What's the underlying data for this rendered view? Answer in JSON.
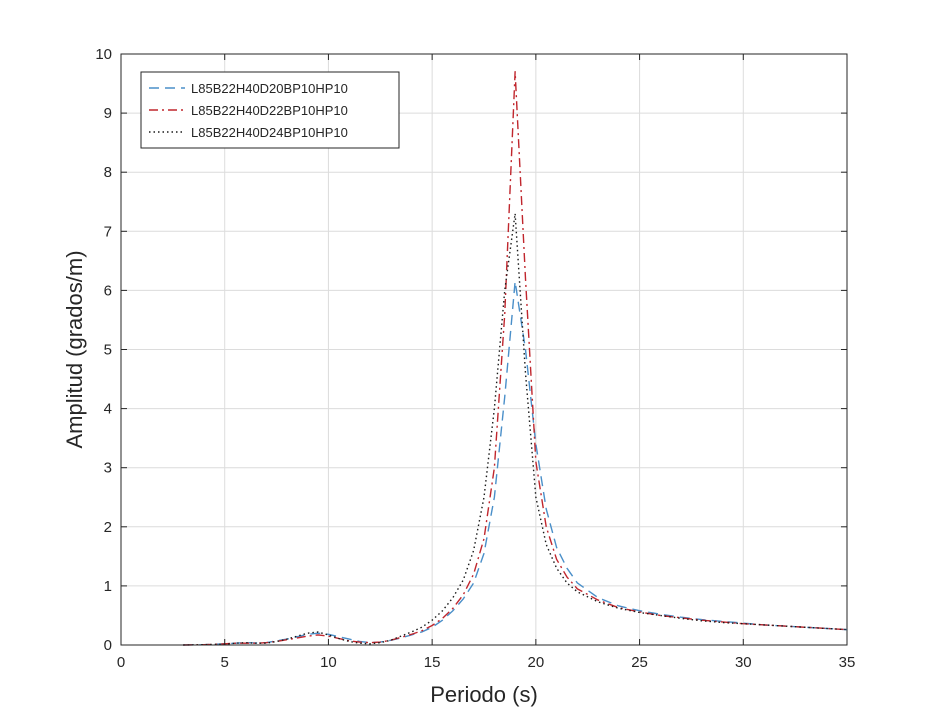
{
  "chart_data": {
    "type": "line",
    "title": "",
    "xlabel": "Periodo (s)",
    "ylabel": "Amplitud (grados/m)",
    "xlim": [
      0,
      35
    ],
    "ylim": [
      0,
      10
    ],
    "xticks": [
      0,
      5,
      10,
      15,
      20,
      25,
      30,
      35
    ],
    "yticks": [
      0,
      1,
      2,
      3,
      4,
      5,
      6,
      7,
      8,
      9,
      10
    ],
    "grid": true,
    "legend_position": "top-left",
    "series": [
      {
        "name": "L85B22H40D20BP10HP10",
        "color": "#4A8FC9",
        "dash": "dashed",
        "x": [
          3,
          4,
          5,
          5.5,
          6,
          6.5,
          7,
          7.5,
          8,
          8.5,
          9,
          9.5,
          10,
          10.5,
          11,
          11.5,
          12,
          12.5,
          13,
          13.5,
          14,
          14.5,
          15,
          15.5,
          16,
          16.5,
          17,
          17.5,
          18,
          18.5,
          19,
          19.5,
          20,
          20.5,
          21,
          21.5,
          22,
          23,
          24,
          25,
          26,
          27,
          28,
          29,
          30,
          31,
          32,
          33,
          34,
          35
        ],
        "y": [
          0.0,
          0.005,
          0.02,
          0.03,
          0.04,
          0.035,
          0.04,
          0.07,
          0.1,
          0.14,
          0.18,
          0.2,
          0.18,
          0.14,
          0.1,
          0.06,
          0.04,
          0.05,
          0.08,
          0.12,
          0.17,
          0.22,
          0.3,
          0.42,
          0.58,
          0.78,
          1.05,
          1.55,
          2.5,
          4.2,
          6.15,
          5.0,
          3.4,
          2.3,
          1.65,
          1.3,
          1.05,
          0.8,
          0.66,
          0.58,
          0.52,
          0.47,
          0.43,
          0.4,
          0.37,
          0.34,
          0.32,
          0.3,
          0.28,
          0.26
        ]
      },
      {
        "name": "L85B22H40D22BP10HP10",
        "color": "#C0262D",
        "dash": "dashdot",
        "x": [
          3,
          4,
          5,
          5.5,
          6,
          6.5,
          7,
          7.5,
          8,
          8.5,
          9,
          9.5,
          10,
          10.5,
          11,
          11.5,
          12,
          12.5,
          13,
          13.5,
          14,
          14.5,
          15,
          15.5,
          16,
          16.5,
          17,
          17.5,
          18,
          18.5,
          19,
          19.5,
          20,
          20.5,
          21,
          21.5,
          22,
          23,
          24,
          25,
          26,
          27,
          28,
          29,
          30,
          31,
          32,
          33,
          34,
          35
        ],
        "y": [
          0.0,
          0.005,
          0.02,
          0.03,
          0.03,
          0.03,
          0.04,
          0.06,
          0.09,
          0.12,
          0.15,
          0.17,
          0.15,
          0.11,
          0.07,
          0.05,
          0.04,
          0.05,
          0.08,
          0.13,
          0.18,
          0.24,
          0.33,
          0.45,
          0.62,
          0.85,
          1.2,
          1.8,
          3.0,
          5.6,
          9.7,
          6.2,
          3.1,
          2.0,
          1.45,
          1.15,
          0.95,
          0.76,
          0.63,
          0.56,
          0.5,
          0.46,
          0.42,
          0.39,
          0.36,
          0.34,
          0.32,
          0.3,
          0.28,
          0.26
        ]
      },
      {
        "name": "L85B22H40D24BP10HP10",
        "color": "#1A1A1A",
        "dash": "dotted",
        "x": [
          3,
          4,
          5,
          5.5,
          6,
          6.5,
          7,
          7.5,
          8,
          8.5,
          9,
          9.5,
          10,
          10.5,
          11,
          11.5,
          12,
          12.5,
          13,
          13.5,
          14,
          14.5,
          15,
          15.5,
          16,
          16.5,
          17,
          17.5,
          18,
          18.5,
          19,
          19.5,
          20,
          20.5,
          21,
          21.5,
          22,
          23,
          24,
          25,
          26,
          27,
          28,
          29,
          30,
          31,
          32,
          33,
          34,
          35
        ],
        "y": [
          0.0,
          0.005,
          0.015,
          0.03,
          0.04,
          0.03,
          0.03,
          0.06,
          0.1,
          0.15,
          0.2,
          0.22,
          0.17,
          0.11,
          0.06,
          0.03,
          0.02,
          0.04,
          0.08,
          0.15,
          0.22,
          0.3,
          0.42,
          0.58,
          0.8,
          1.1,
          1.6,
          2.5,
          4.0,
          6.0,
          7.3,
          4.6,
          2.5,
          1.7,
          1.3,
          1.05,
          0.9,
          0.73,
          0.62,
          0.55,
          0.5,
          0.45,
          0.41,
          0.38,
          0.36,
          0.34,
          0.32,
          0.3,
          0.28,
          0.26
        ]
      }
    ]
  }
}
